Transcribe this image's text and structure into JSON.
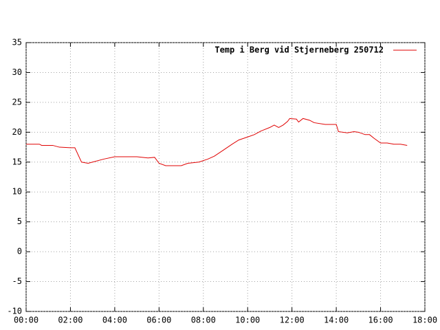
{
  "chart_data": {
    "type": "line",
    "x": [
      0,
      0.6,
      0.7,
      1.2,
      1.5,
      2.0,
      2.2,
      2.5,
      2.8,
      3.0,
      3.5,
      4.0,
      5.0,
      5.5,
      5.8,
      6.0,
      6.3,
      7.0,
      7.3,
      7.8,
      8.2,
      8.5,
      8.9,
      9.3,
      9.6,
      10.0,
      10.3,
      10.6,
      11.0,
      11.2,
      11.4,
      11.6,
      11.8,
      11.9,
      12.2,
      12.3,
      12.5,
      12.8,
      13.0,
      13.5,
      14.0,
      14.1,
      14.5,
      14.8,
      15.0,
      15.3,
      15.5,
      15.7,
      16.0,
      16.3,
      16.6,
      16.9,
      17.2
    ],
    "series": [
      {
        "name": "Temp i Berg vid Stjerneberg 250712",
        "color": "#e00000",
        "values": [
          18.0,
          18.0,
          17.8,
          17.8,
          17.5,
          17.4,
          17.4,
          15.0,
          14.8,
          15.0,
          15.5,
          15.9,
          15.9,
          15.7,
          15.8,
          14.8,
          14.4,
          14.4,
          14.8,
          15.0,
          15.5,
          16.0,
          17.0,
          18.0,
          18.7,
          19.2,
          19.6,
          20.2,
          20.8,
          21.2,
          20.8,
          21.2,
          21.8,
          22.3,
          22.2,
          21.7,
          22.3,
          22.0,
          21.6,
          21.3,
          21.3,
          20.1,
          19.9,
          20.1,
          20.0,
          19.6,
          19.6,
          19.0,
          18.2,
          18.2,
          18.0,
          18.0,
          17.8
        ]
      }
    ],
    "xlim": [
      0,
      18
    ],
    "xticks": [
      {
        "value": 0,
        "label": "00:00"
      },
      {
        "value": 2,
        "label": "02:00"
      },
      {
        "value": 4,
        "label": "04:00"
      },
      {
        "value": 6,
        "label": "06:00"
      },
      {
        "value": 8,
        "label": "08:00"
      },
      {
        "value": 10,
        "label": "10:00"
      },
      {
        "value": 12,
        "label": "12:00"
      },
      {
        "value": 14,
        "label": "14:00"
      },
      {
        "value": 16,
        "label": "16:00"
      },
      {
        "value": 18,
        "label": "18:00"
      }
    ],
    "ylim": [
      -10,
      35
    ],
    "yticks": [
      -10,
      -5,
      0,
      5,
      10,
      15,
      20,
      25,
      30,
      35
    ],
    "grid": true,
    "legend": "top-right"
  }
}
